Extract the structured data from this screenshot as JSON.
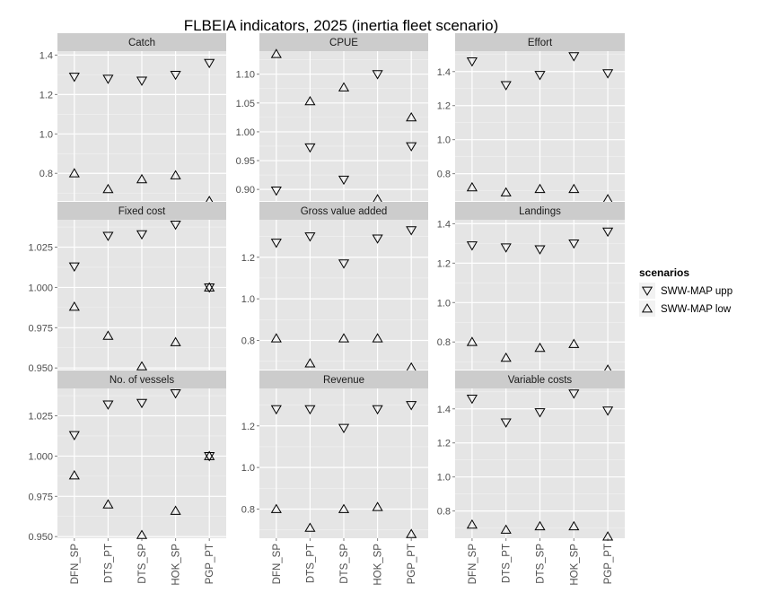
{
  "figure": {
    "title": "FLBEIA indicators, 2025 (inertia fleet scenario)"
  },
  "legend": {
    "title": "scenarios",
    "items": [
      {
        "label": "SWW-MAP upp",
        "marker": "triangle-down"
      },
      {
        "label": "SWW-MAP low",
        "marker": "triangle-up"
      }
    ]
  },
  "chart_data": {
    "type": "scatter",
    "facet_layout": "3x3",
    "panel_background": "#e5e5e5",
    "grid": true,
    "legend_position": "right",
    "categories": [
      "DFN_SP",
      "DTS_PT",
      "DTS_SP",
      "HOK_SP",
      "PGP_PT"
    ],
    "series_names": [
      "SWW-MAP upp",
      "SWW-MAP low"
    ],
    "panels": [
      {
        "title": "Catch",
        "ylim": [
          0.66,
          1.42
        ],
        "yticks": [
          0.8,
          1.0,
          1.2,
          1.4
        ],
        "series": [
          {
            "name": "SWW-MAP upp",
            "values": [
              1.29,
              1.28,
              1.27,
              1.3,
              1.36
            ]
          },
          {
            "name": "SWW-MAP low",
            "values": [
              0.8,
              0.72,
              0.77,
              0.79,
              0.66
            ]
          }
        ]
      },
      {
        "title": "CPUE",
        "ylim": [
          0.88,
          1.14
        ],
        "yticks": [
          0.9,
          0.95,
          1.0,
          1.05,
          1.1
        ],
        "tick_decimals": 2,
        "series": [
          {
            "name": "SWW-MAP upp",
            "values": [
              0.898,
              0.973,
              0.917,
              1.1,
              0.975
            ]
          },
          {
            "name": "SWW-MAP low",
            "values": [
              1.135,
              1.053,
              1.077,
              0.883,
              1.025
            ]
          }
        ]
      },
      {
        "title": "Effort",
        "ylim": [
          0.64,
          1.52
        ],
        "yticks": [
          0.8,
          1.0,
          1.2,
          1.4
        ],
        "series": [
          {
            "name": "SWW-MAP upp",
            "values": [
              1.46,
              1.32,
              1.38,
              1.49,
              1.39
            ]
          },
          {
            "name": "SWW-MAP low",
            "values": [
              0.72,
              0.69,
              0.71,
              0.71,
              0.65
            ]
          }
        ]
      },
      {
        "title": "Fixed cost",
        "ylim": [
          0.949,
          1.042
        ],
        "yticks": [
          0.95,
          0.975,
          1.0,
          1.025
        ],
        "tick_decimals": 3,
        "series": [
          {
            "name": "SWW-MAP upp",
            "values": [
              1.013,
              1.032,
              1.033,
              1.039,
              1.0
            ]
          },
          {
            "name": "SWW-MAP low",
            "values": [
              0.988,
              0.97,
              0.951,
              0.966,
              1.0
            ]
          }
        ]
      },
      {
        "title": "Gross value added",
        "ylim": [
          0.66,
          1.38
        ],
        "yticks": [
          0.8,
          1.0,
          1.2
        ],
        "series": [
          {
            "name": "SWW-MAP upp",
            "values": [
              1.27,
              1.3,
              1.17,
              1.29,
              1.33
            ]
          },
          {
            "name": "SWW-MAP low",
            "values": [
              0.81,
              0.69,
              0.81,
              0.81,
              0.67
            ]
          }
        ]
      },
      {
        "title": "Landings",
        "ylim": [
          0.66,
          1.42
        ],
        "yticks": [
          0.8,
          1.0,
          1.2,
          1.4
        ],
        "series": [
          {
            "name": "SWW-MAP upp",
            "values": [
              1.29,
              1.28,
              1.27,
              1.3,
              1.36
            ]
          },
          {
            "name": "SWW-MAP low",
            "values": [
              0.8,
              0.72,
              0.77,
              0.79,
              0.66
            ]
          }
        ]
      },
      {
        "title": "No. of vessels",
        "ylim": [
          0.949,
          1.042
        ],
        "yticks": [
          0.95,
          0.975,
          1.0,
          1.025
        ],
        "tick_decimals": 3,
        "series": [
          {
            "name": "SWW-MAP upp",
            "values": [
              1.013,
              1.032,
              1.033,
              1.039,
              1.0
            ]
          },
          {
            "name": "SWW-MAP low",
            "values": [
              0.988,
              0.97,
              0.951,
              0.966,
              1.0
            ]
          }
        ]
      },
      {
        "title": "Revenue",
        "ylim": [
          0.66,
          1.38
        ],
        "yticks": [
          0.8,
          1.0,
          1.2
        ],
        "series": [
          {
            "name": "SWW-MAP upp",
            "values": [
              1.28,
              1.28,
              1.19,
              1.28,
              1.3
            ]
          },
          {
            "name": "SWW-MAP low",
            "values": [
              0.8,
              0.71,
              0.8,
              0.81,
              0.68
            ]
          }
        ]
      },
      {
        "title": "Variable costs",
        "ylim": [
          0.64,
          1.52
        ],
        "yticks": [
          0.8,
          1.0,
          1.2,
          1.4
        ],
        "series": [
          {
            "name": "SWW-MAP upp",
            "values": [
              1.46,
              1.32,
              1.38,
              1.49,
              1.39
            ]
          },
          {
            "name": "SWW-MAP low",
            "values": [
              0.72,
              0.69,
              0.71,
              0.71,
              0.65
            ]
          }
        ]
      }
    ]
  }
}
